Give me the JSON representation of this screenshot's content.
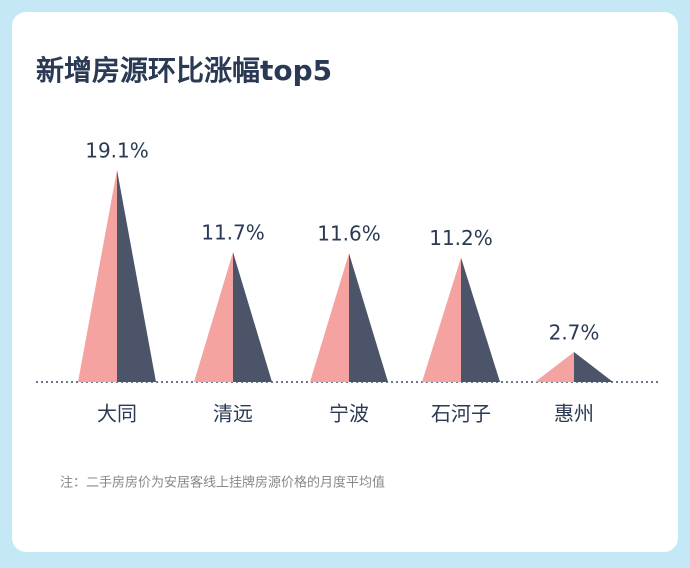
{
  "chart_data": {
    "type": "peak",
    "title": "新增房源环比涨幅top5",
    "categories": [
      "大同",
      "清远",
      "宁波",
      "石河子",
      "惠州"
    ],
    "values": [
      19.1,
      11.7,
      11.6,
      11.2,
      2.7
    ],
    "value_labels": [
      "19.1%",
      "11.7%",
      "11.6%",
      "11.2%",
      "2.7%"
    ],
    "colors": [
      "#f5a3a0",
      "#4b5468"
    ],
    "note": "注：二手房房价为安居客线上挂牌房源价格的月度平均值"
  }
}
